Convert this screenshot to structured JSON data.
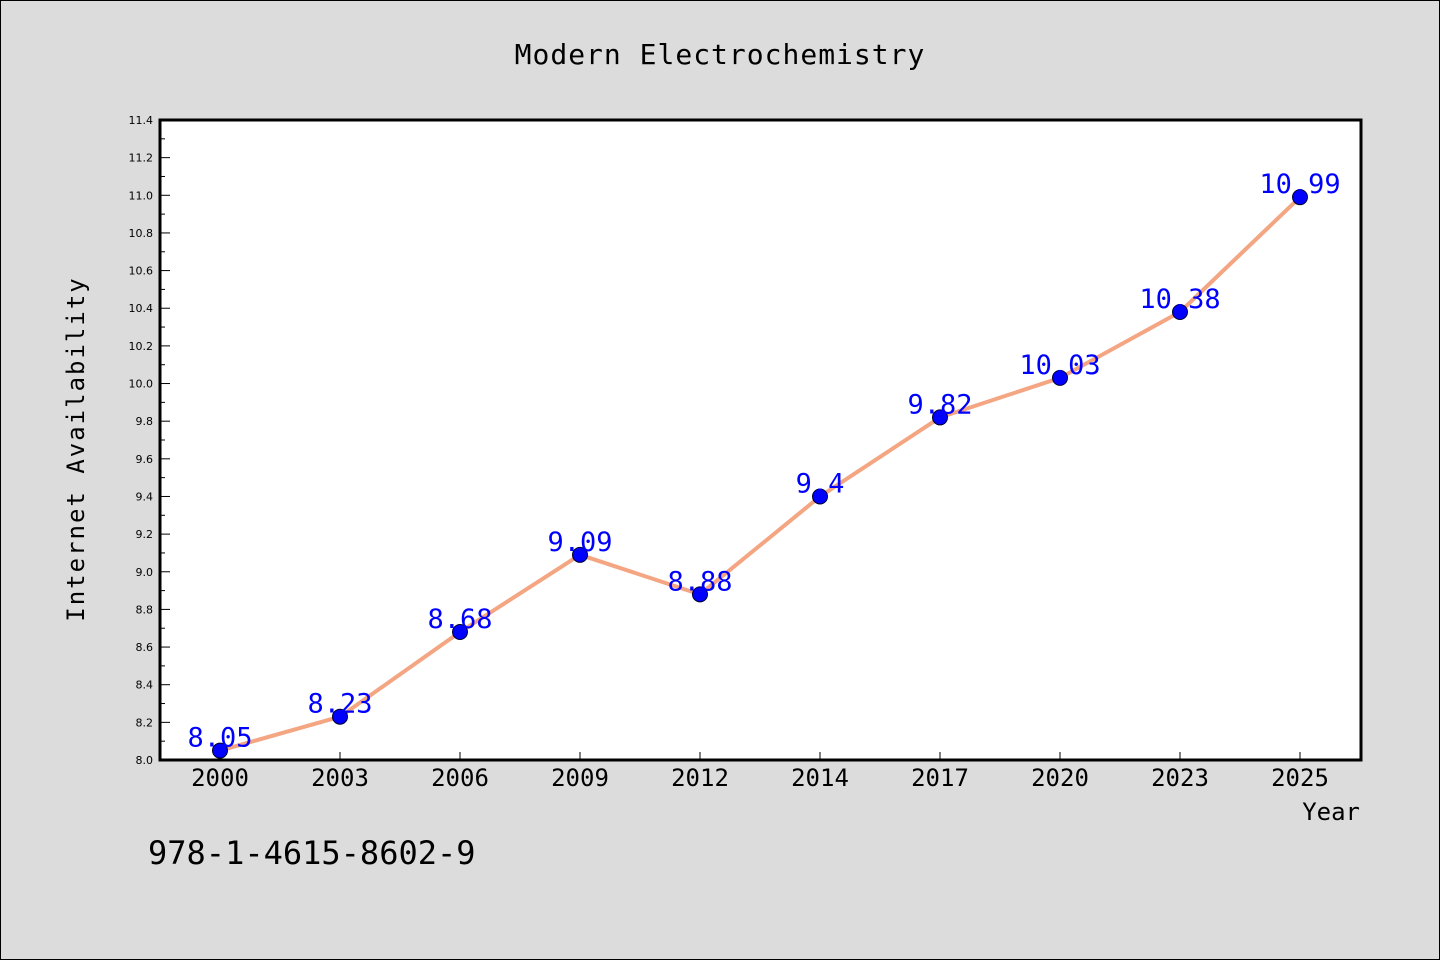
{
  "chart_data": {
    "type": "line",
    "title": "Modern Electrochemistry",
    "xlabel": "Year",
    "ylabel": "Internet Availability",
    "categories": [
      "2000",
      "2003",
      "2006",
      "2009",
      "2012",
      "2014",
      "2017",
      "2020",
      "2023",
      "2025"
    ],
    "values": [
      8.05,
      8.23,
      8.68,
      9.09,
      8.88,
      9.4,
      9.82,
      10.03,
      10.38,
      10.99
    ],
    "data_labels": [
      "8.05",
      "8.23",
      "8.68",
      "9.09",
      "8.88",
      "9.4",
      "9.82",
      "10.03",
      "10.38",
      "10.99"
    ],
    "ylim": [
      8.0,
      11.4
    ],
    "yticks": [
      "8.0",
      "8.2",
      "8.4",
      "8.6",
      "8.8",
      "9.0",
      "9.2",
      "9.4",
      "9.6",
      "9.8",
      "10.0",
      "10.2",
      "10.4",
      "10.6",
      "10.8",
      "11.0",
      "11.2",
      "11.4"
    ],
    "grid": false,
    "legend": "none",
    "line_color": "#f4a582",
    "marker_color": "#0000ff",
    "label_color": "#0000ff",
    "background_color": "#dcdcdc",
    "plot_background_color": "#ffffff"
  },
  "footer": {
    "isbn": "978-1-4615-8602-9"
  }
}
